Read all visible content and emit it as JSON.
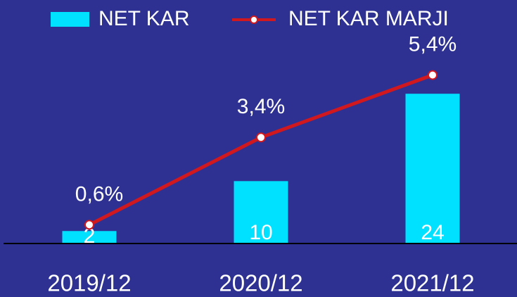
{
  "chart_data": {
    "type": "bar_line",
    "categories": [
      "2019/12",
      "2020/12",
      "2021/12"
    ],
    "series": [
      {
        "name": "NET KAR",
        "type": "bar",
        "color": "#00e1ff",
        "values": [
          2,
          10,
          24
        ]
      },
      {
        "name": "NET KAR MARJI",
        "type": "line",
        "axis": "y2",
        "color": "#d0181e",
        "values": [
          0.6,
          3.4,
          5.4
        ],
        "value_labels": [
          "0,6%",
          "3,4%",
          "5,4%"
        ]
      }
    ],
    "ylim": [
      0,
      30
    ],
    "y2lim": [
      0,
      6
    ],
    "legend": "top"
  }
}
